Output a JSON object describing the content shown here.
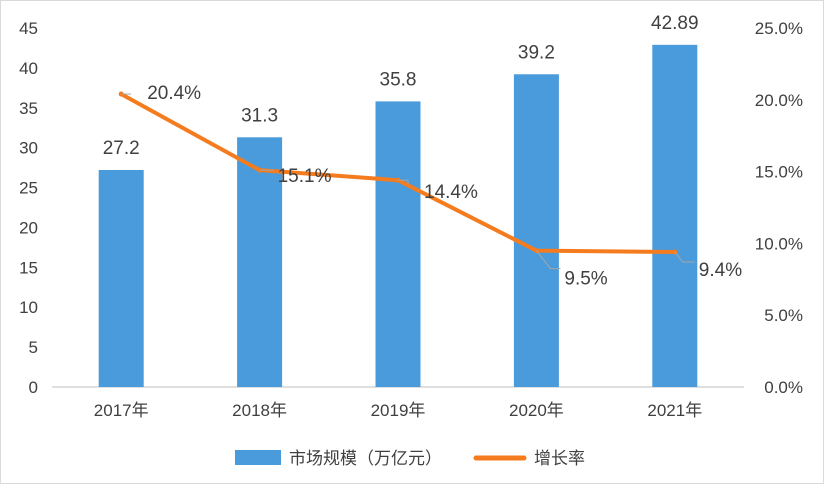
{
  "chart_data": {
    "type": "bar+line",
    "categories": [
      "2017年",
      "2018年",
      "2019年",
      "2020年",
      "2021年"
    ],
    "series": [
      {
        "name": "市场规模（万亿元）",
        "type": "bar",
        "axis": "left",
        "values": [
          27.2,
          31.3,
          35.8,
          39.2,
          42.89
        ],
        "labels": [
          "27.2",
          "31.3",
          "35.8",
          "39.2",
          "42.89"
        ],
        "color": "#4A9BDB"
      },
      {
        "name": "增长率",
        "type": "line",
        "axis": "right",
        "values": [
          20.4,
          15.1,
          14.4,
          9.5,
          9.4
        ],
        "labels": [
          "20.4%",
          "15.1%",
          "14.4%",
          "9.5%",
          "9.4%"
        ],
        "color": "#F47C1E"
      }
    ],
    "y_left": {
      "min": 0,
      "max": 45,
      "step": 5,
      "ticks": [
        "0",
        "5",
        "10",
        "15",
        "20",
        "25",
        "30",
        "35",
        "40",
        "45"
      ]
    },
    "y_right": {
      "min": 0,
      "max": 25,
      "step": 5,
      "ticks": [
        "0.0%",
        "5.0%",
        "10.0%",
        "15.0%",
        "20.0%",
        "25.0%"
      ]
    },
    "title": "",
    "xlabel": "",
    "ylabel": "",
    "grid": false,
    "legend": "bottom"
  }
}
